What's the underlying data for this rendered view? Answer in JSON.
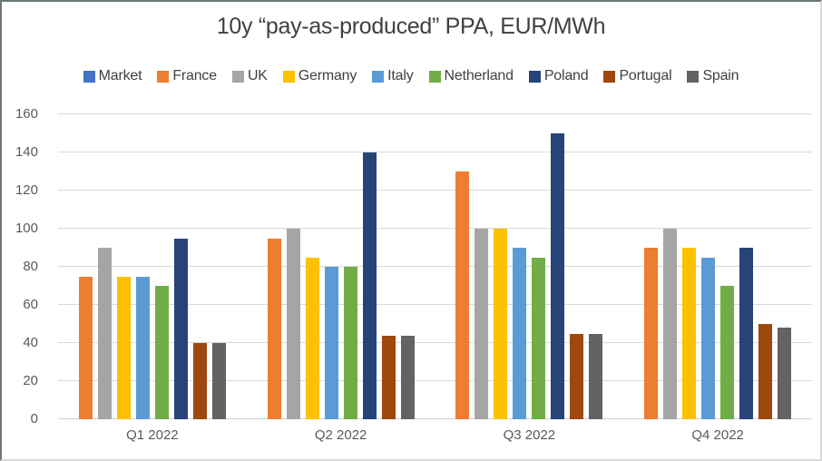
{
  "title": "10y “pay-as-produced” PPA, EUR/MWh",
  "chart_data": {
    "type": "bar",
    "title": "10y “pay-as-produced” PPA, EUR/MWh",
    "categories": [
      "Q1 2022",
      "Q2 2022",
      "Q3 2022",
      "Q4 2022"
    ],
    "series": [
      {
        "name": "Market",
        "color": "#4472C4",
        "values": [
          null,
          null,
          null,
          null
        ]
      },
      {
        "name": "France",
        "color": "#ED7D31",
        "values": [
          75,
          95,
          130,
          90
        ]
      },
      {
        "name": "UK",
        "color": "#A5A5A5",
        "values": [
          90,
          100,
          100,
          100
        ]
      },
      {
        "name": "Germany",
        "color": "#FFC000",
        "values": [
          75,
          85,
          100,
          90
        ]
      },
      {
        "name": "Italy",
        "color": "#5B9BD5",
        "values": [
          75,
          80,
          90,
          85
        ]
      },
      {
        "name": "Netherland",
        "color": "#70AD47",
        "values": [
          70,
          80,
          85,
          70
        ]
      },
      {
        "name": "Poland",
        "color": "#264478",
        "values": [
          95,
          140,
          150,
          90
        ]
      },
      {
        "name": "Portugal",
        "color": "#9E480E",
        "values": [
          40,
          44,
          45,
          50
        ]
      },
      {
        "name": "Spain",
        "color": "#636363",
        "values": [
          40,
          44,
          45,
          48
        ]
      }
    ],
    "ylim": [
      0,
      160
    ],
    "yticks": [
      0,
      20,
      40,
      60,
      80,
      100,
      120,
      140,
      160
    ],
    "xlabel": "",
    "ylabel": "",
    "grid": "horizontal",
    "legend_position": "top",
    "gridline_color": "#D9D9D9",
    "axis_label_color": "#595959",
    "title_color": "#404040"
  }
}
